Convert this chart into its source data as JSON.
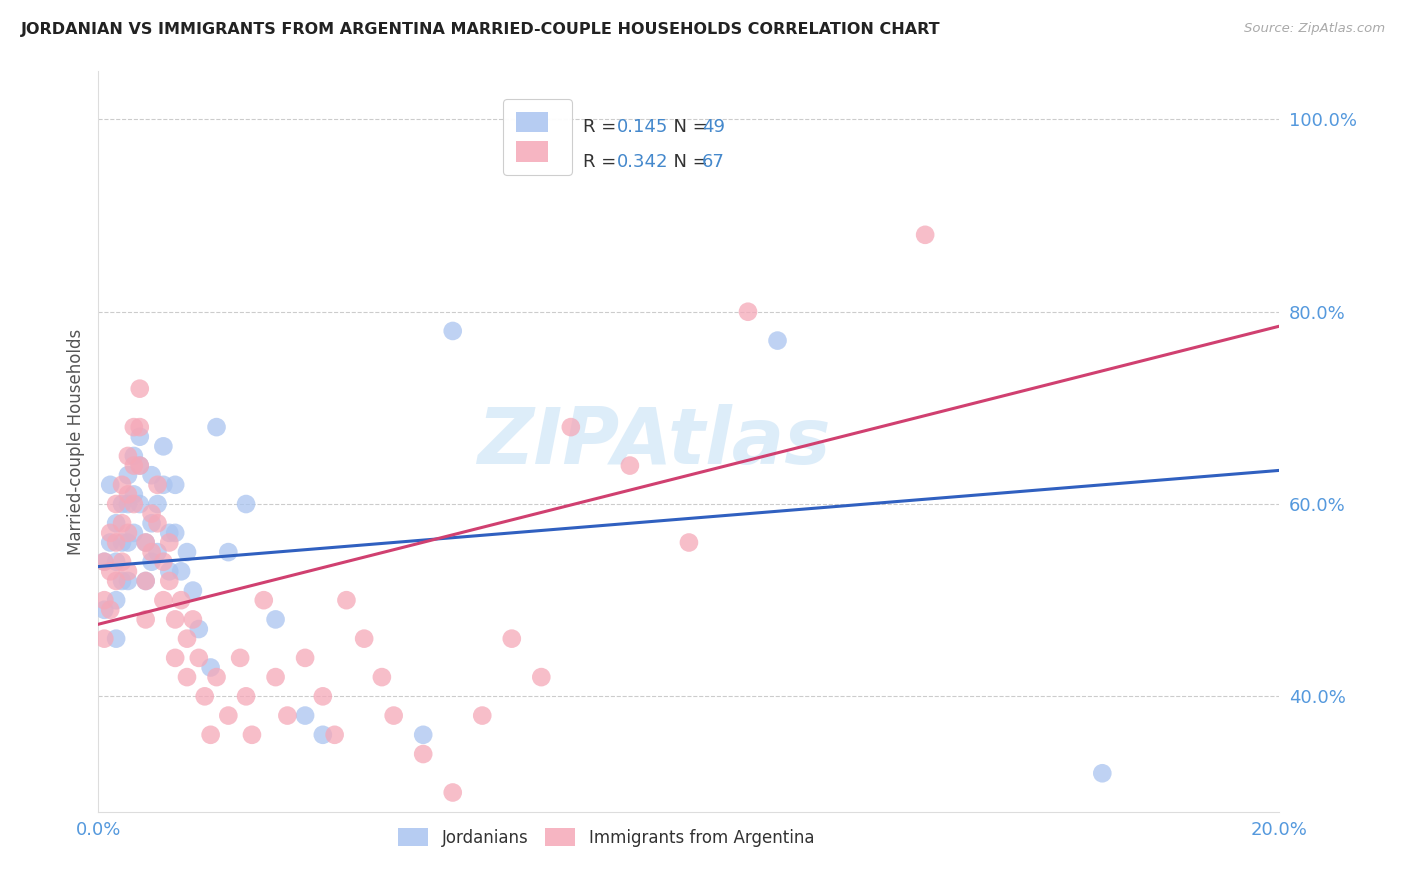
{
  "title": "JORDANIAN VS IMMIGRANTS FROM ARGENTINA MARRIED-COUPLE HOUSEHOLDS CORRELATION CHART",
  "source": "Source: ZipAtlas.com",
  "ylabel": "Married-couple Households",
  "yticks": [
    0.4,
    0.6,
    0.8,
    1.0
  ],
  "ytick_labels": [
    "40.0%",
    "60.0%",
    "80.0%",
    "100.0%"
  ],
  "xmin": 0.0,
  "xmax": 0.2,
  "ymin": 0.28,
  "ymax": 1.05,
  "blue_R": 0.145,
  "blue_N": 49,
  "pink_R": 0.342,
  "pink_N": 67,
  "blue_color": "#aac4f0",
  "pink_color": "#f5a8b8",
  "blue_line_color": "#3060c0",
  "pink_line_color": "#d04070",
  "legend_label_blue": "Jordanians",
  "legend_label_pink": "Immigrants from Argentina",
  "watermark": "ZIPAtlas",
  "blue_line_y0": 0.535,
  "blue_line_y1": 0.635,
  "pink_line_y0": 0.475,
  "pink_line_y1": 0.785,
  "blue_dots_x": [
    0.001,
    0.001,
    0.002,
    0.002,
    0.003,
    0.003,
    0.003,
    0.003,
    0.004,
    0.004,
    0.004,
    0.005,
    0.005,
    0.005,
    0.005,
    0.006,
    0.006,
    0.006,
    0.007,
    0.007,
    0.007,
    0.008,
    0.008,
    0.009,
    0.009,
    0.009,
    0.01,
    0.01,
    0.011,
    0.011,
    0.012,
    0.012,
    0.013,
    0.013,
    0.014,
    0.015,
    0.016,
    0.017,
    0.019,
    0.02,
    0.022,
    0.025,
    0.03,
    0.035,
    0.038,
    0.055,
    0.06,
    0.115,
    0.17
  ],
  "blue_dots_y": [
    0.54,
    0.49,
    0.62,
    0.56,
    0.58,
    0.54,
    0.5,
    0.46,
    0.6,
    0.56,
    0.52,
    0.63,
    0.6,
    0.56,
    0.52,
    0.65,
    0.61,
    0.57,
    0.67,
    0.64,
    0.6,
    0.56,
    0.52,
    0.63,
    0.58,
    0.54,
    0.6,
    0.55,
    0.66,
    0.62,
    0.57,
    0.53,
    0.62,
    0.57,
    0.53,
    0.55,
    0.51,
    0.47,
    0.43,
    0.68,
    0.55,
    0.6,
    0.48,
    0.38,
    0.36,
    0.36,
    0.78,
    0.77,
    0.32
  ],
  "pink_dots_x": [
    0.001,
    0.001,
    0.001,
    0.002,
    0.002,
    0.002,
    0.003,
    0.003,
    0.003,
    0.004,
    0.004,
    0.004,
    0.005,
    0.005,
    0.005,
    0.005,
    0.006,
    0.006,
    0.006,
    0.007,
    0.007,
    0.007,
    0.008,
    0.008,
    0.008,
    0.009,
    0.009,
    0.01,
    0.01,
    0.011,
    0.011,
    0.012,
    0.012,
    0.013,
    0.013,
    0.014,
    0.015,
    0.015,
    0.016,
    0.017,
    0.018,
    0.019,
    0.02,
    0.022,
    0.024,
    0.025,
    0.026,
    0.028,
    0.03,
    0.032,
    0.035,
    0.038,
    0.04,
    0.042,
    0.045,
    0.048,
    0.05,
    0.055,
    0.06,
    0.065,
    0.07,
    0.075,
    0.08,
    0.09,
    0.1,
    0.11,
    0.14
  ],
  "pink_dots_y": [
    0.54,
    0.5,
    0.46,
    0.57,
    0.53,
    0.49,
    0.6,
    0.56,
    0.52,
    0.62,
    0.58,
    0.54,
    0.65,
    0.61,
    0.57,
    0.53,
    0.68,
    0.64,
    0.6,
    0.72,
    0.68,
    0.64,
    0.56,
    0.52,
    0.48,
    0.59,
    0.55,
    0.62,
    0.58,
    0.54,
    0.5,
    0.56,
    0.52,
    0.48,
    0.44,
    0.5,
    0.46,
    0.42,
    0.48,
    0.44,
    0.4,
    0.36,
    0.42,
    0.38,
    0.44,
    0.4,
    0.36,
    0.5,
    0.42,
    0.38,
    0.44,
    0.4,
    0.36,
    0.5,
    0.46,
    0.42,
    0.38,
    0.34,
    0.3,
    0.38,
    0.46,
    0.42,
    0.68,
    0.64,
    0.56,
    0.8,
    0.88
  ]
}
